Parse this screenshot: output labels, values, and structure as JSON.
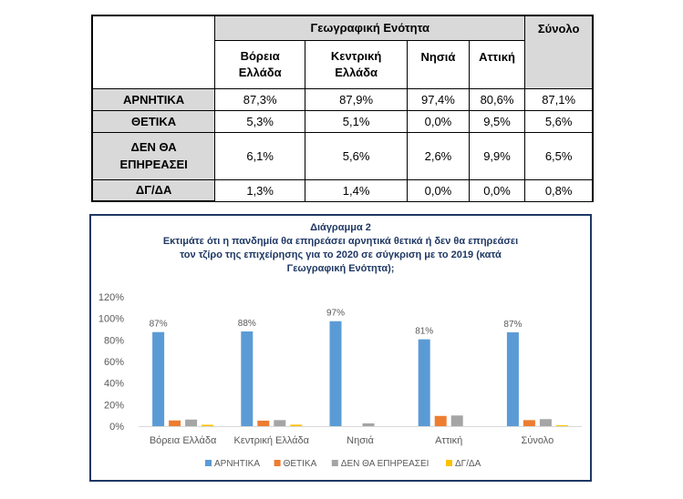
{
  "table": {
    "group_header": "Γεωγραφική Ενότητα",
    "total_header": "Σύνολο",
    "columns": [
      {
        "line1": "Βόρεια",
        "line2": "Ελλάδα"
      },
      {
        "line1": "Κεντρική",
        "line2": "Ελλάδα"
      },
      {
        "line1": "Νησιά",
        "line2": ""
      },
      {
        "line1": "Αττική",
        "line2": ""
      }
    ],
    "rows": [
      {
        "label1": "ΑΡΝΗΤΙΚΑ",
        "label2": "",
        "values": [
          "87,3%",
          "87,9%",
          "97,4%",
          "80,6%",
          "87,1%"
        ]
      },
      {
        "label1": "ΘΕΤΙΚΑ",
        "label2": "",
        "values": [
          "5,3%",
          "5,1%",
          "0,0%",
          "9,5%",
          "5,6%"
        ]
      },
      {
        "label1": "ΔΕΝ ΘΑ",
        "label2": "ΕΠΗΡΕΑΣΕΙ",
        "values": [
          "6,1%",
          "5,6%",
          "2,6%",
          "9,9%",
          "6,5%"
        ]
      },
      {
        "label1": "ΔΓ/ΔΑ",
        "label2": "",
        "values": [
          "1,3%",
          "1,4%",
          "0,0%",
          "0,0%",
          "0,8%"
        ]
      }
    ]
  },
  "chart_data": {
    "type": "bar",
    "title_lines": [
      "Διάγραμμα 2",
      "Εκτιμάτε ότι η πανδημία θα επηρεάσει αρνητικά θετικά ή δεν θα επηρεάσει",
      "τον τζίρο της επιχείρησης για το 2020 σε σύγκριση με το 2019 (κατά",
      "Γεωγραφική Ενότητα);"
    ],
    "categories": [
      "Βόρεια Ελλάδα",
      "Κεντρική Ελλάδα",
      "Νησιά",
      "Αττική",
      "Σύνολο"
    ],
    "series": [
      {
        "name": "ΑΡΝΗΤΙΚΑ",
        "color": "#5b9bd5",
        "values": [
          87.3,
          87.9,
          97.4,
          80.6,
          87.1
        ],
        "labels": [
          "87%",
          "88%",
          "97%",
          "81%",
          "87%"
        ]
      },
      {
        "name": "ΘΕΤΙΚΑ",
        "color": "#ed7d31",
        "values": [
          5.3,
          5.1,
          0.0,
          9.5,
          5.6
        ]
      },
      {
        "name": "ΔΕΝ ΘΑ ΕΠΗΡΕΑΣΕΙ",
        "color": "#a5a5a5",
        "values": [
          6.1,
          5.6,
          2.6,
          9.9,
          6.5
        ]
      },
      {
        "name": "ΔΓ/ΔΑ",
        "color": "#ffc000",
        "values": [
          1.3,
          1.4,
          0.0,
          0.0,
          0.8
        ]
      }
    ],
    "yticks": [
      "0%",
      "20%",
      "40%",
      "60%",
      "80%",
      "100%",
      "120%"
    ],
    "ylim": [
      0,
      120
    ],
    "legend_position": "bottom",
    "grid": false
  }
}
